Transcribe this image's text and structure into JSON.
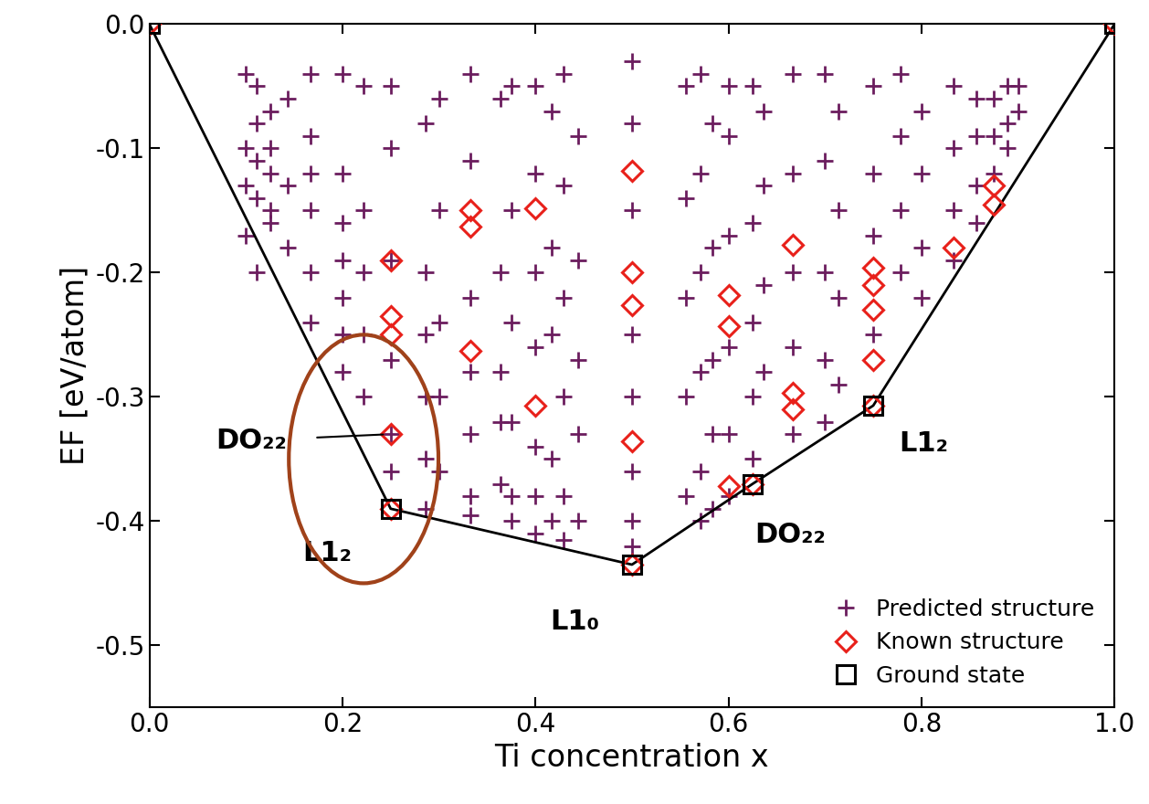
{
  "chart_data": {
    "type": "scatter",
    "x_label": "Ti concentration x",
    "y_label": "EF [eV/atom]",
    "xlim": [
      0.0,
      1.0
    ],
    "ylim": [
      -0.55,
      0.0
    ],
    "xticks": [
      0.0,
      0.2,
      0.4,
      0.6,
      0.8,
      1.0
    ],
    "yticks": [
      -0.5,
      -0.4,
      -0.3,
      -0.2,
      -0.1,
      0.0
    ],
    "legend": "lower right",
    "series": [
      {
        "name": "Predicted structure",
        "type": "scatter",
        "color": "#6b1d5e",
        "marker": "plus",
        "x": [
          0.1,
          0.1,
          0.1,
          0.1,
          0.111,
          0.111,
          0.111,
          0.111,
          0.111,
          0.125,
          0.125,
          0.125,
          0.125,
          0.125,
          0.143,
          0.143,
          0.143,
          0.167,
          0.167,
          0.167,
          0.167,
          0.167,
          0.167,
          0.2,
          0.2,
          0.2,
          0.2,
          0.2,
          0.2,
          0.2,
          0.222,
          0.222,
          0.222,
          0.222,
          0.222,
          0.25,
          0.25,
          0.25,
          0.25,
          0.25,
          0.25,
          0.286,
          0.286,
          0.286,
          0.286,
          0.286,
          0.286,
          0.3,
          0.3,
          0.3,
          0.3,
          0.3,
          0.333,
          0.333,
          0.333,
          0.333,
          0.333,
          0.333,
          0.333,
          0.364,
          0.364,
          0.364,
          0.364,
          0.364,
          0.375,
          0.375,
          0.375,
          0.375,
          0.375,
          0.375,
          0.4,
          0.4,
          0.4,
          0.4,
          0.4,
          0.4,
          0.4,
          0.417,
          0.417,
          0.417,
          0.417,
          0.417,
          0.429,
          0.429,
          0.429,
          0.429,
          0.429,
          0.429,
          0.444,
          0.444,
          0.444,
          0.444,
          0.444,
          0.5,
          0.5,
          0.5,
          0.5,
          0.5,
          0.5,
          0.5,
          0.5,
          0.556,
          0.556,
          0.556,
          0.556,
          0.556,
          0.571,
          0.571,
          0.571,
          0.571,
          0.571,
          0.571,
          0.583,
          0.583,
          0.583,
          0.583,
          0.583,
          0.6,
          0.6,
          0.6,
          0.6,
          0.6,
          0.6,
          0.625,
          0.625,
          0.625,
          0.625,
          0.625,
          0.636,
          0.636,
          0.636,
          0.636,
          0.667,
          0.667,
          0.667,
          0.667,
          0.667,
          0.7,
          0.7,
          0.7,
          0.7,
          0.7,
          0.714,
          0.714,
          0.714,
          0.714,
          0.75,
          0.75,
          0.75,
          0.75,
          0.778,
          0.778,
          0.778,
          0.778,
          0.8,
          0.8,
          0.8,
          0.8,
          0.833,
          0.833,
          0.833,
          0.833,
          0.857,
          0.857,
          0.857,
          0.857,
          0.875,
          0.875,
          0.875,
          0.889,
          0.889,
          0.889,
          0.9,
          0.9
        ],
        "values": [
          -0.04,
          -0.1,
          -0.13,
          -0.17,
          -0.05,
          -0.08,
          -0.11,
          -0.14,
          -0.2,
          -0.07,
          -0.1,
          -0.12,
          -0.15,
          -0.16,
          -0.06,
          -0.13,
          -0.18,
          -0.04,
          -0.09,
          -0.12,
          -0.15,
          -0.2,
          -0.24,
          -0.04,
          -0.12,
          -0.16,
          -0.19,
          -0.22,
          -0.25,
          -0.28,
          -0.05,
          -0.15,
          -0.2,
          -0.25,
          -0.3,
          -0.05,
          -0.1,
          -0.19,
          -0.27,
          -0.33,
          -0.36,
          -0.08,
          -0.2,
          -0.25,
          -0.3,
          -0.35,
          -0.39,
          -0.06,
          -0.15,
          -0.24,
          -0.3,
          -0.36,
          -0.04,
          -0.11,
          -0.22,
          -0.28,
          -0.33,
          -0.38,
          -0.395,
          -0.06,
          -0.2,
          -0.28,
          -0.32,
          -0.37,
          -0.05,
          -0.15,
          -0.24,
          -0.32,
          -0.38,
          -0.4,
          -0.05,
          -0.12,
          -0.2,
          -0.26,
          -0.34,
          -0.38,
          -0.41,
          -0.07,
          -0.18,
          -0.25,
          -0.35,
          -0.4,
          -0.04,
          -0.13,
          -0.22,
          -0.3,
          -0.38,
          -0.415,
          -0.09,
          -0.19,
          -0.27,
          -0.33,
          -0.4,
          -0.03,
          -0.08,
          -0.15,
          -0.25,
          -0.3,
          -0.36,
          -0.4,
          -0.42,
          -0.05,
          -0.14,
          -0.22,
          -0.3,
          -0.38,
          -0.04,
          -0.12,
          -0.2,
          -0.28,
          -0.36,
          -0.4,
          -0.08,
          -0.18,
          -0.27,
          -0.33,
          -0.39,
          -0.05,
          -0.09,
          -0.17,
          -0.26,
          -0.33,
          -0.38,
          -0.05,
          -0.16,
          -0.24,
          -0.3,
          -0.35,
          -0.07,
          -0.13,
          -0.21,
          -0.28,
          -0.04,
          -0.12,
          -0.2,
          -0.26,
          -0.33,
          -0.04,
          -0.11,
          -0.2,
          -0.27,
          -0.32,
          -0.07,
          -0.15,
          -0.22,
          -0.29,
          -0.05,
          -0.12,
          -0.17,
          -0.25,
          -0.04,
          -0.09,
          -0.15,
          -0.2,
          -0.07,
          -0.12,
          -0.18,
          -0.22,
          -0.05,
          -0.1,
          -0.15,
          -0.19,
          -0.06,
          -0.09,
          -0.13,
          -0.16,
          -0.06,
          -0.09,
          -0.12,
          -0.05,
          -0.08,
          -0.1,
          -0.05,
          -0.07
        ]
      },
      {
        "name": "Known structure",
        "type": "scatter",
        "color": "#e8201a",
        "marker": "diamond",
        "x": [
          0.0,
          0.25,
          0.25,
          0.25,
          0.25,
          0.25,
          0.333,
          0.333,
          0.333,
          0.4,
          0.4,
          0.5,
          0.5,
          0.5,
          0.5,
          0.5,
          0.6,
          0.6,
          0.6,
          0.625,
          0.667,
          0.667,
          0.667,
          0.75,
          0.75,
          0.75,
          0.75,
          0.75,
          0.833,
          0.875,
          0.875,
          1.0
        ],
        "values": [
          0.0,
          -0.19,
          -0.235,
          -0.25,
          -0.33,
          -0.39,
          -0.15,
          -0.163,
          -0.263,
          -0.148,
          -0.307,
          -0.118,
          -0.2,
          -0.226,
          -0.336,
          -0.435,
          -0.218,
          -0.243,
          -0.372,
          -0.37,
          -0.178,
          -0.297,
          -0.31,
          -0.196,
          -0.21,
          -0.23,
          -0.27,
          -0.307,
          -0.18,
          -0.13,
          -0.145,
          0.0
        ]
      },
      {
        "name": "Ground state",
        "type": "line",
        "color": "#000000",
        "marker": "square",
        "line_style": "solid",
        "x": [
          0.0,
          0.25,
          0.5,
          0.625,
          0.75,
          1.0
        ],
        "values": [
          0.0,
          -0.39,
          -0.435,
          -0.37,
          -0.307,
          0.0
        ]
      }
    ],
    "annotations": [
      {
        "text": "DO₂₂",
        "x": 0.25,
        "y": -0.33
      },
      {
        "text": "L1₂",
        "x": 0.25,
        "y": -0.39
      },
      {
        "text": "L1₀",
        "x": 0.5,
        "y": -0.435
      },
      {
        "text": "DO₂₂",
        "x": 0.625,
        "y": -0.37
      },
      {
        "text": "L1₂",
        "x": 0.75,
        "y": -0.307
      }
    ]
  }
}
